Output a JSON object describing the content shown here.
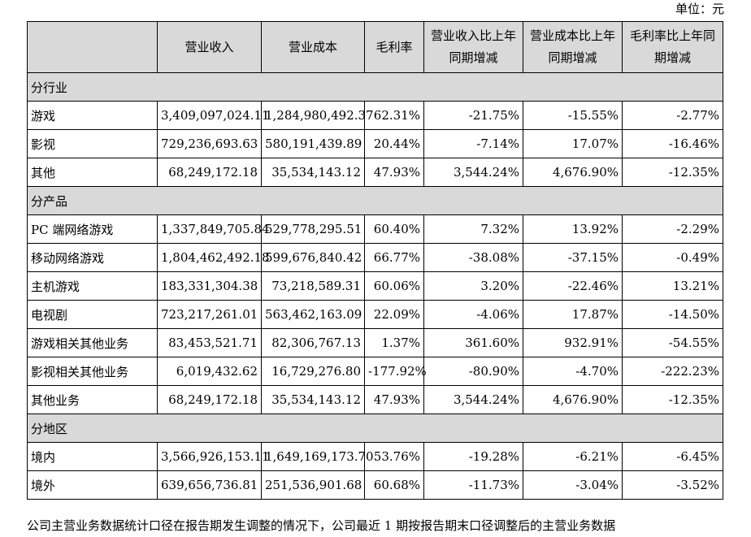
{
  "unit_label": "单位：元",
  "headers": [
    "",
    "营业收入",
    "营业成本",
    "毛利率",
    "营业收入比上年\n同期增减",
    "营业成本比上年\n同期增减",
    "毛利率比上年同\n期增减"
  ],
  "sections": [
    {
      "title": "分行业",
      "rows": [
        {
          "label": "游戏",
          "cells": [
            "3,409,097,024.11",
            "1,284,980,492.37",
            "62.31%",
            "-21.75%",
            "-15.55%",
            "-2.77%"
          ]
        },
        {
          "label": "影视",
          "cells": [
            "729,236,693.63",
            "580,191,439.89",
            "20.44%",
            "-7.14%",
            "17.07%",
            "-16.46%"
          ]
        },
        {
          "label": "其他",
          "cells": [
            "68,249,172.18",
            "35,534,143.12",
            "47.93%",
            "3,544.24%",
            "4,676.90%",
            "-12.35%"
          ]
        }
      ]
    },
    {
      "title": "分产品",
      "rows": [
        {
          "label": "PC 端网络游戏",
          "cells": [
            "1,337,849,705.84",
            "529,778,295.51",
            "60.40%",
            "7.32%",
            "13.92%",
            "-2.29%"
          ]
        },
        {
          "label": "移动网络游戏",
          "cells": [
            "1,804,462,492.18",
            "599,676,840.42",
            "66.77%",
            "-38.08%",
            "-37.15%",
            "-0.49%"
          ]
        },
        {
          "label": "主机游戏",
          "cells": [
            "183,331,304.38",
            "73,218,589.31",
            "60.06%",
            "3.20%",
            "-22.46%",
            "13.21%"
          ]
        },
        {
          "label": "电视剧",
          "cells": [
            "723,217,261.01",
            "563,462,163.09",
            "22.09%",
            "-4.06%",
            "17.87%",
            "-14.50%"
          ]
        },
        {
          "label": "游戏相关其他业务",
          "cells": [
            "83,453,521.71",
            "82,306,767.13",
            "1.37%",
            "361.60%",
            "932.91%",
            "-54.55%"
          ]
        },
        {
          "label": "影视相关其他业务",
          "cells": [
            "6,019,432.62",
            "16,729,276.80",
            "-177.92%",
            "-80.90%",
            "-4.70%",
            "-222.23%"
          ]
        },
        {
          "label": "其他业务",
          "cells": [
            "68,249,172.18",
            "35,534,143.12",
            "47.93%",
            "3,544.24%",
            "4,676.90%",
            "-12.35%"
          ]
        }
      ]
    },
    {
      "title": "分地区",
      "rows": [
        {
          "label": "境内",
          "cells": [
            "3,566,926,153.11",
            "1,649,169,173.70",
            "53.76%",
            "-19.28%",
            "-6.21%",
            "-6.45%"
          ]
        },
        {
          "label": "境外",
          "cells": [
            "639,656,736.81",
            "251,536,901.68",
            "60.68%",
            "-11.73%",
            "-3.04%",
            "-3.52%"
          ]
        }
      ]
    }
  ],
  "footer_note": "公司主营业务数据统计口径在报告期发生调整的情况下，公司最近 1 期按报告期末口径调整后的主营业务数据"
}
